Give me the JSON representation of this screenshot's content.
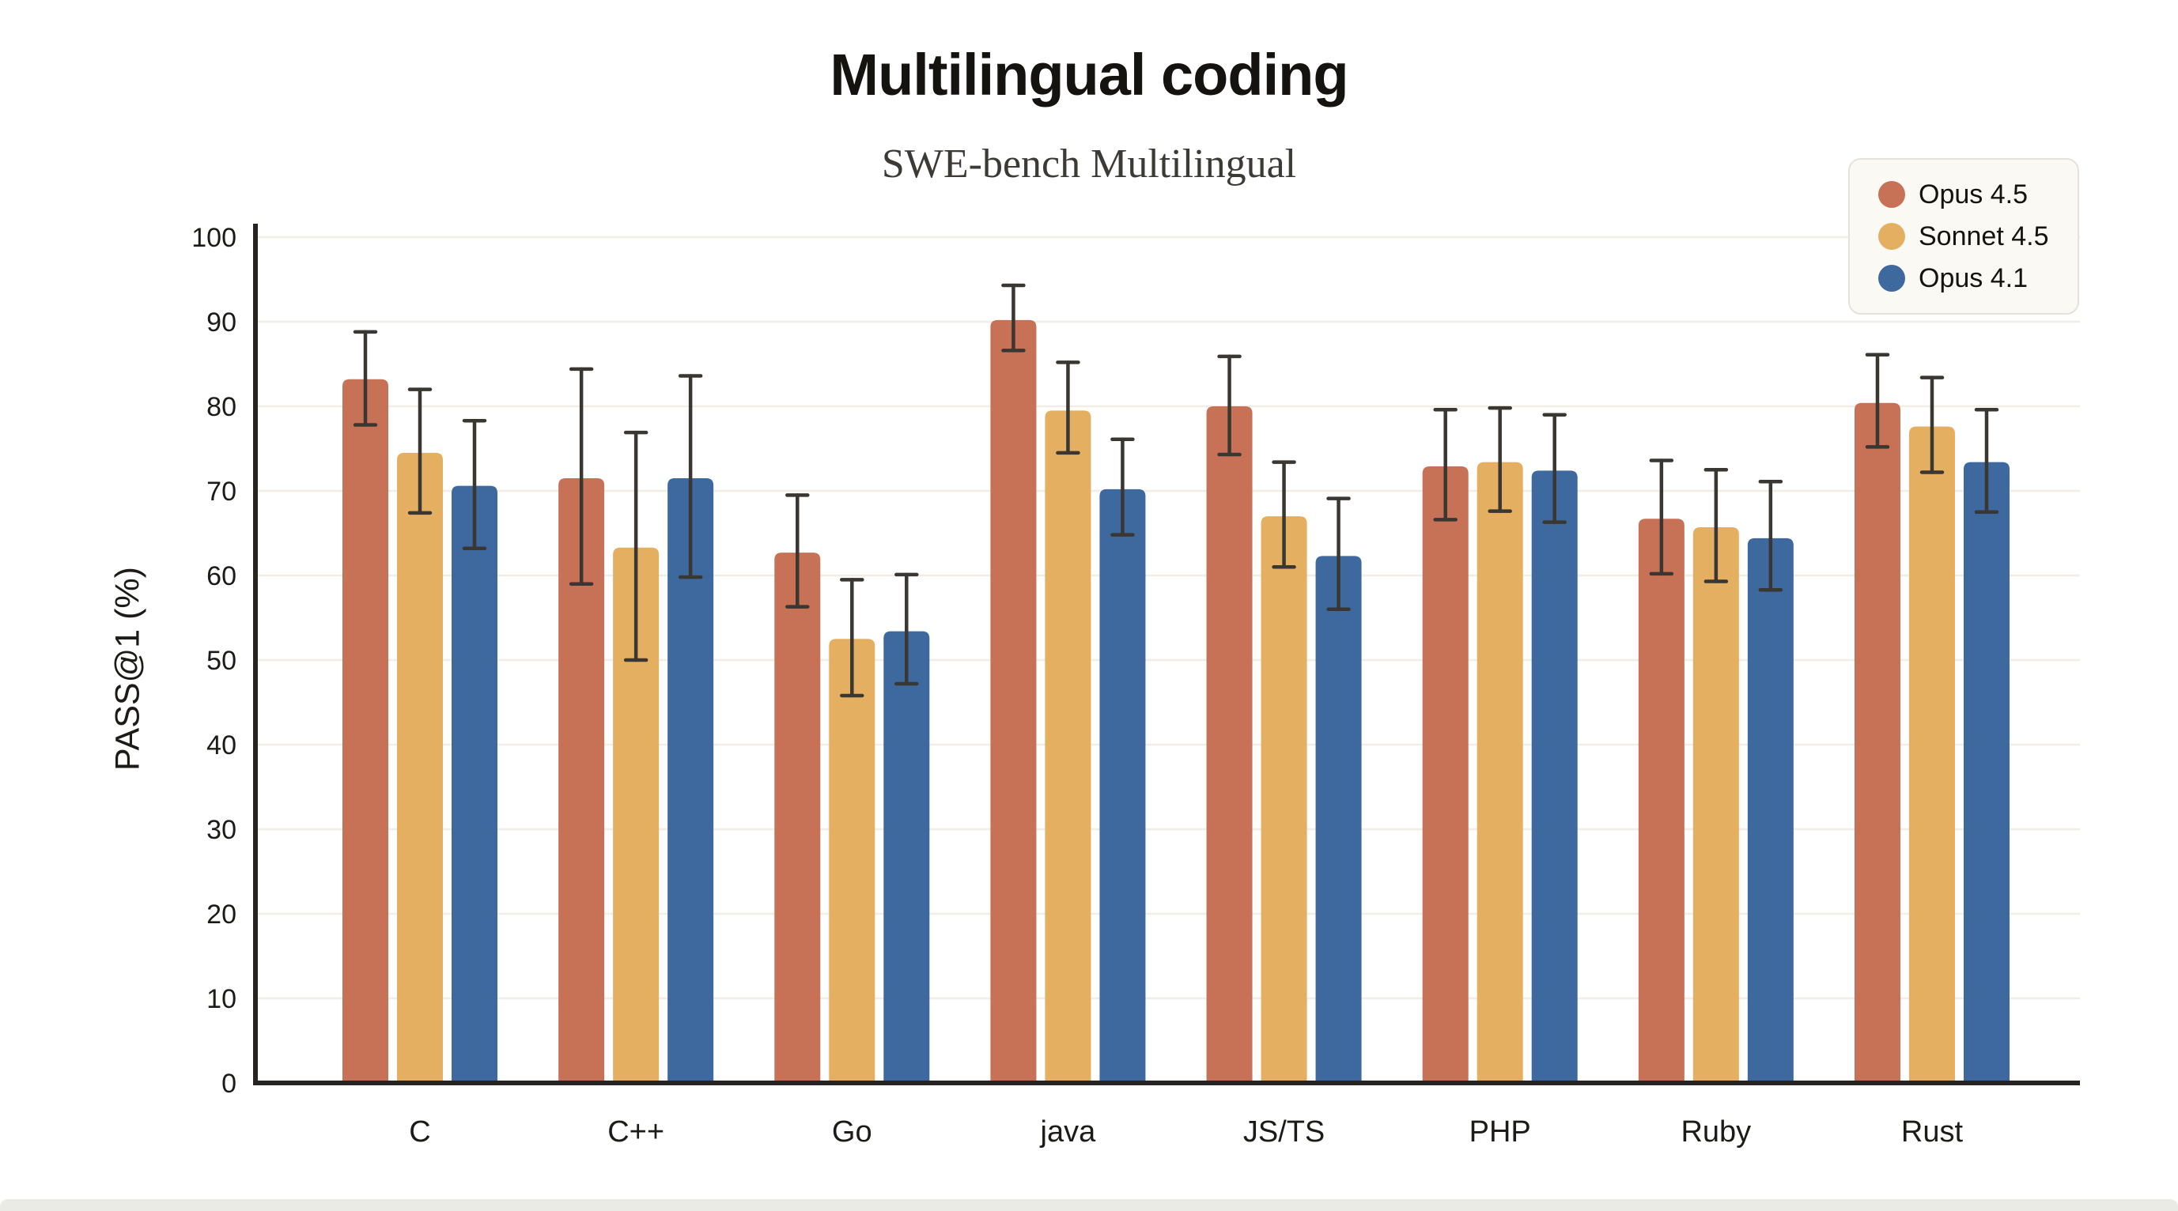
{
  "chart": {
    "title": "Multilingual coding",
    "subtitle": "SWE-bench Multilingual",
    "ylabel": "PASS@1 (%)"
  },
  "colors": {
    "opus45": "#C77257",
    "sonnet45": "#E5AF62",
    "opus41": "#3D699E",
    "axis": "#262320",
    "grid": "#f2eee5",
    "error_bar": "#3a3733",
    "tick_text": "#1d1b17",
    "legend_bg": "#faf9f3",
    "legend_border": "#e5e2d9"
  },
  "chart_data": {
    "type": "bar",
    "title": "Multilingual coding",
    "subtitle": "SWE-bench Multilingual",
    "xlabel": "",
    "ylabel": "PASS@1 (%)",
    "ylim": [
      0,
      100
    ],
    "yticks": [
      0,
      10,
      20,
      30,
      40,
      50,
      60,
      70,
      80,
      90,
      100
    ],
    "grid": true,
    "legend_position": "top-right",
    "error_bars": true,
    "categories": [
      "C",
      "C++",
      "Go",
      "java",
      "JS/TS",
      "PHP",
      "Ruby",
      "Rust"
    ],
    "series": [
      {
        "name": "Opus 4.5",
        "color": "#C77257",
        "values": [
          83.2,
          71.5,
          62.7,
          90.2,
          80.0,
          72.9,
          66.7,
          80.4
        ],
        "err_low": [
          77.8,
          59.0,
          56.3,
          86.6,
          74.3,
          66.6,
          60.2,
          75.2
        ],
        "err_high": [
          88.8,
          84.4,
          69.5,
          94.3,
          85.9,
          79.6,
          73.6,
          86.1
        ]
      },
      {
        "name": "Sonnet 4.5",
        "color": "#E5AF62",
        "values": [
          74.5,
          63.3,
          52.5,
          79.5,
          67.0,
          73.4,
          65.7,
          77.6
        ],
        "err_low": [
          67.4,
          50.0,
          45.8,
          74.5,
          61.0,
          67.6,
          59.3,
          72.2
        ],
        "err_high": [
          82.0,
          76.9,
          59.5,
          85.2,
          73.4,
          79.8,
          72.5,
          83.4
        ]
      },
      {
        "name": "Opus 4.1",
        "color": "#3D699E",
        "values": [
          70.6,
          71.5,
          53.4,
          70.2,
          62.3,
          72.4,
          64.4,
          73.4
        ],
        "err_low": [
          63.2,
          59.8,
          47.2,
          64.8,
          56.0,
          66.3,
          58.3,
          67.5
        ],
        "err_high": [
          78.3,
          83.6,
          60.1,
          76.1,
          69.1,
          79.0,
          71.1,
          79.6
        ]
      }
    ]
  }
}
